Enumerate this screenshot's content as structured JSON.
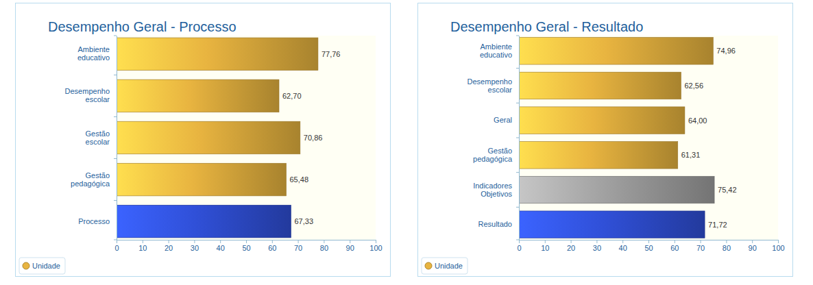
{
  "chart_data": [
    {
      "type": "bar",
      "title": "Desempenho Geral - Processo",
      "orientation": "horizontal",
      "categories": [
        "Ambiente educativo",
        "Desempenho escolar",
        "Gestão escolar",
        "Gestão pedagógica",
        "Processo"
      ],
      "series": [
        {
          "name": "Unidade",
          "color": "#e8b440",
          "colors": [
            "#e8b440",
            "#e8b440",
            "#e8b440",
            "#e8b440",
            "#3050d8"
          ],
          "values": [
            77.76,
            62.7,
            70.86,
            65.48,
            67.33
          ],
          "value_labels": [
            "77,76",
            "62,70",
            "70,86",
            "65,48",
            "67,33"
          ]
        }
      ],
      "xlim": [
        0,
        100
      ],
      "xticks": [
        0,
        10,
        20,
        30,
        40,
        50,
        60,
        70,
        80,
        90,
        100
      ],
      "data_labels": true,
      "legend": "bottom-left",
      "grid": false
    },
    {
      "type": "bar",
      "title": "Desempenho Geral - Resultado",
      "orientation": "horizontal",
      "categories": [
        "Ambiente educativo",
        "Desempenho escolar",
        "Geral",
        "Gestão pedagógica",
        "Indicadores Objetivos",
        "Resultado"
      ],
      "series": [
        {
          "name": "Unidade",
          "color": "#e8b440",
          "colors": [
            "#e8b440",
            "#e8b440",
            "#e8b440",
            "#e8b440",
            "#a0a0a0",
            "#3050d8"
          ],
          "values": [
            74.96,
            62.56,
            64.0,
            61.31,
            75.42,
            71.72
          ],
          "value_labels": [
            "74,96",
            "62,56",
            "64,00",
            "61,31",
            "75,42",
            "71,72"
          ]
        }
      ],
      "xlim": [
        0,
        100
      ],
      "xticks": [
        0,
        10,
        20,
        30,
        40,
        50,
        60,
        70,
        80,
        90,
        100
      ],
      "data_labels": true,
      "legend": "bottom-left",
      "grid": false
    }
  ]
}
